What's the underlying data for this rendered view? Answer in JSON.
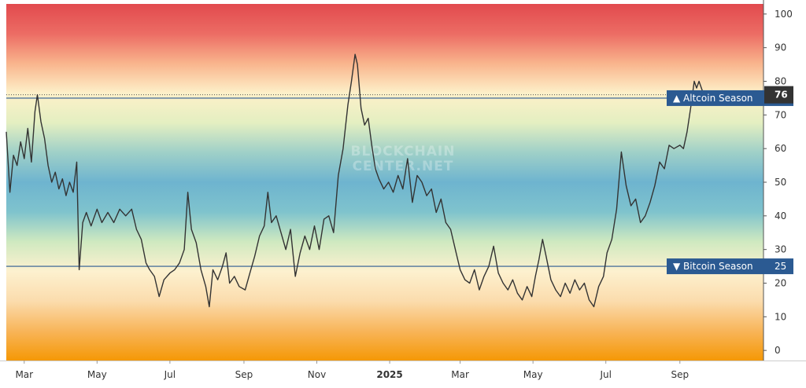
{
  "watermark": {
    "line1": "BLOCKCHAIN",
    "line2": "CENTER.NET"
  },
  "colors": {
    "line": "#333333",
    "threshold_alt": "#2b5a92",
    "threshold_btc": "#2b5a92",
    "tag_bg": "#2b5a92",
    "current_bg": "#333333",
    "gradient": [
      "#f59805",
      "#f8b55a",
      "#fbdcad",
      "#fdf1cf",
      "#cfe9c0",
      "#7fc3cd",
      "#6eb4cf",
      "#9fd0c8",
      "#e4efc1",
      "#fdf0c9",
      "#f9b48c",
      "#ec6c64",
      "#e24a4e"
    ]
  },
  "chart_data": {
    "type": "line",
    "title": "",
    "ylim": [
      -3,
      103
    ],
    "y_ticks": [
      "0",
      "10",
      "20",
      "30",
      "40",
      "50",
      "60",
      "70",
      "80",
      "90",
      "100"
    ],
    "x_ticks": [
      "Mar",
      "May",
      "Jul",
      "Sep",
      "Nov",
      "2025",
      "Mar",
      "May",
      "Jul",
      "Sep"
    ],
    "x_tick_bold": "2025",
    "x_start": "2024-02-15",
    "x_end": "2025-11-10",
    "x_tick_dates": [
      "2024-03-01",
      "2024-05-01",
      "2024-07-01",
      "2024-09-01",
      "2024-11-01",
      "2025-01-01",
      "2025-03-01",
      "2025-05-01",
      "2025-07-01",
      "2025-09-01"
    ],
    "current_value": "76",
    "thresholds": [
      {
        "label": "Altcoin Season",
        "value": 75,
        "display": "75",
        "arrow": "▲"
      },
      {
        "label": "Bitcoin Season",
        "value": 25,
        "display": "25",
        "arrow": "▼"
      }
    ],
    "series": [
      {
        "points": [
          [
            "2024-02-15",
            65
          ],
          [
            "2024-02-18",
            47
          ],
          [
            "2024-02-21",
            58
          ],
          [
            "2024-02-24",
            55
          ],
          [
            "2024-02-27",
            62
          ],
          [
            "2024-03-01",
            57
          ],
          [
            "2024-03-04",
            66
          ],
          [
            "2024-03-07",
            56
          ],
          [
            "2024-03-10",
            71
          ],
          [
            "2024-03-12",
            76
          ],
          [
            "2024-03-15",
            68
          ],
          [
            "2024-03-18",
            63
          ],
          [
            "2024-03-21",
            55
          ],
          [
            "2024-03-24",
            50
          ],
          [
            "2024-03-27",
            53
          ],
          [
            "2024-03-30",
            48
          ],
          [
            "2024-04-02",
            51
          ],
          [
            "2024-04-05",
            46
          ],
          [
            "2024-04-08",
            50
          ],
          [
            "2024-04-11",
            47
          ],
          [
            "2024-04-14",
            56
          ],
          [
            "2024-04-16",
            24
          ],
          [
            "2024-04-19",
            38
          ],
          [
            "2024-04-22",
            41
          ],
          [
            "2024-04-26",
            37
          ],
          [
            "2024-05-01",
            42
          ],
          [
            "2024-05-05",
            38
          ],
          [
            "2024-05-10",
            41
          ],
          [
            "2024-05-15",
            38
          ],
          [
            "2024-05-20",
            42
          ],
          [
            "2024-05-25",
            40
          ],
          [
            "2024-05-30",
            42
          ],
          [
            "2024-06-03",
            36
          ],
          [
            "2024-06-07",
            33
          ],
          [
            "2024-06-11",
            26
          ],
          [
            "2024-06-14",
            24
          ],
          [
            "2024-06-18",
            22
          ],
          [
            "2024-06-22",
            16
          ],
          [
            "2024-06-26",
            21
          ],
          [
            "2024-07-01",
            23
          ],
          [
            "2024-07-05",
            24
          ],
          [
            "2024-07-09",
            26
          ],
          [
            "2024-07-13",
            30
          ],
          [
            "2024-07-16",
            47
          ],
          [
            "2024-07-19",
            36
          ],
          [
            "2024-07-23",
            32
          ],
          [
            "2024-07-27",
            24
          ],
          [
            "2024-07-31",
            19
          ],
          [
            "2024-08-03",
            13
          ],
          [
            "2024-08-06",
            24
          ],
          [
            "2024-08-10",
            21
          ],
          [
            "2024-08-14",
            25
          ],
          [
            "2024-08-17",
            29
          ],
          [
            "2024-08-20",
            20
          ],
          [
            "2024-08-24",
            22
          ],
          [
            "2024-08-28",
            19
          ],
          [
            "2024-09-02",
            18
          ],
          [
            "2024-09-06",
            23
          ],
          [
            "2024-09-10",
            28
          ],
          [
            "2024-09-14",
            34
          ],
          [
            "2024-09-18",
            37
          ],
          [
            "2024-09-21",
            47
          ],
          [
            "2024-09-24",
            38
          ],
          [
            "2024-09-28",
            40
          ],
          [
            "2024-10-02",
            35
          ],
          [
            "2024-10-06",
            30
          ],
          [
            "2024-10-10",
            36
          ],
          [
            "2024-10-14",
            22
          ],
          [
            "2024-10-18",
            29
          ],
          [
            "2024-10-22",
            34
          ],
          [
            "2024-10-26",
            30
          ],
          [
            "2024-10-30",
            37
          ],
          [
            "2024-11-03",
            30
          ],
          [
            "2024-11-07",
            39
          ],
          [
            "2024-11-11",
            40
          ],
          [
            "2024-11-15",
            35
          ],
          [
            "2024-11-19",
            52
          ],
          [
            "2024-11-23",
            60
          ],
          [
            "2024-11-27",
            73
          ],
          [
            "2024-11-30",
            80
          ],
          [
            "2024-12-03",
            88
          ],
          [
            "2024-12-05",
            85
          ],
          [
            "2024-12-08",
            72
          ],
          [
            "2024-12-11",
            67
          ],
          [
            "2024-12-14",
            69
          ],
          [
            "2024-12-17",
            61
          ],
          [
            "2024-12-20",
            54
          ],
          [
            "2024-12-23",
            51
          ],
          [
            "2024-12-27",
            48
          ],
          [
            "2024-12-31",
            50
          ],
          [
            "2025-01-04",
            47
          ],
          [
            "2025-01-08",
            52
          ],
          [
            "2025-01-12",
            48
          ],
          [
            "2025-01-16",
            57
          ],
          [
            "2025-01-20",
            44
          ],
          [
            "2025-01-24",
            52
          ],
          [
            "2025-01-28",
            50
          ],
          [
            "2025-02-01",
            46
          ],
          [
            "2025-02-05",
            48
          ],
          [
            "2025-02-09",
            41
          ],
          [
            "2025-02-13",
            45
          ],
          [
            "2025-02-17",
            38
          ],
          [
            "2025-02-21",
            36
          ],
          [
            "2025-02-25",
            30
          ],
          [
            "2025-03-01",
            24
          ],
          [
            "2025-03-05",
            21
          ],
          [
            "2025-03-09",
            20
          ],
          [
            "2025-03-13",
            24
          ],
          [
            "2025-03-17",
            18
          ],
          [
            "2025-03-21",
            22
          ],
          [
            "2025-03-25",
            25
          ],
          [
            "2025-03-29",
            31
          ],
          [
            "2025-04-02",
            23
          ],
          [
            "2025-04-06",
            20
          ],
          [
            "2025-04-10",
            18
          ],
          [
            "2025-04-14",
            21
          ],
          [
            "2025-04-18",
            17
          ],
          [
            "2025-04-22",
            15
          ],
          [
            "2025-04-26",
            19
          ],
          [
            "2025-04-30",
            16
          ],
          [
            "2025-05-03",
            22
          ],
          [
            "2025-05-06",
            27
          ],
          [
            "2025-05-09",
            33
          ],
          [
            "2025-05-12",
            28
          ],
          [
            "2025-05-16",
            21
          ],
          [
            "2025-05-20",
            18
          ],
          [
            "2025-05-24",
            16
          ],
          [
            "2025-05-28",
            20
          ],
          [
            "2025-06-01",
            17
          ],
          [
            "2025-06-05",
            21
          ],
          [
            "2025-06-09",
            18
          ],
          [
            "2025-06-13",
            20
          ],
          [
            "2025-06-17",
            15
          ],
          [
            "2025-06-21",
            13
          ],
          [
            "2025-06-25",
            19
          ],
          [
            "2025-06-29",
            22
          ],
          [
            "2025-07-02",
            29
          ],
          [
            "2025-07-06",
            33
          ],
          [
            "2025-07-10",
            42
          ],
          [
            "2025-07-14",
            59
          ],
          [
            "2025-07-18",
            49
          ],
          [
            "2025-07-22",
            43
          ],
          [
            "2025-07-26",
            45
          ],
          [
            "2025-07-30",
            38
          ],
          [
            "2025-08-03",
            40
          ],
          [
            "2025-08-07",
            44
          ],
          [
            "2025-08-11",
            49
          ],
          [
            "2025-08-15",
            56
          ],
          [
            "2025-08-19",
            54
          ],
          [
            "2025-08-23",
            61
          ],
          [
            "2025-08-27",
            60
          ],
          [
            "2025-09-01",
            61
          ],
          [
            "2025-09-04",
            60
          ],
          [
            "2025-09-07",
            65
          ],
          [
            "2025-09-10",
            72
          ],
          [
            "2025-09-13",
            80
          ],
          [
            "2025-09-15",
            78
          ],
          [
            "2025-09-17",
            80
          ],
          [
            "2025-09-20",
            77
          ],
          [
            "2025-09-22",
            76
          ]
        ]
      }
    ]
  }
}
